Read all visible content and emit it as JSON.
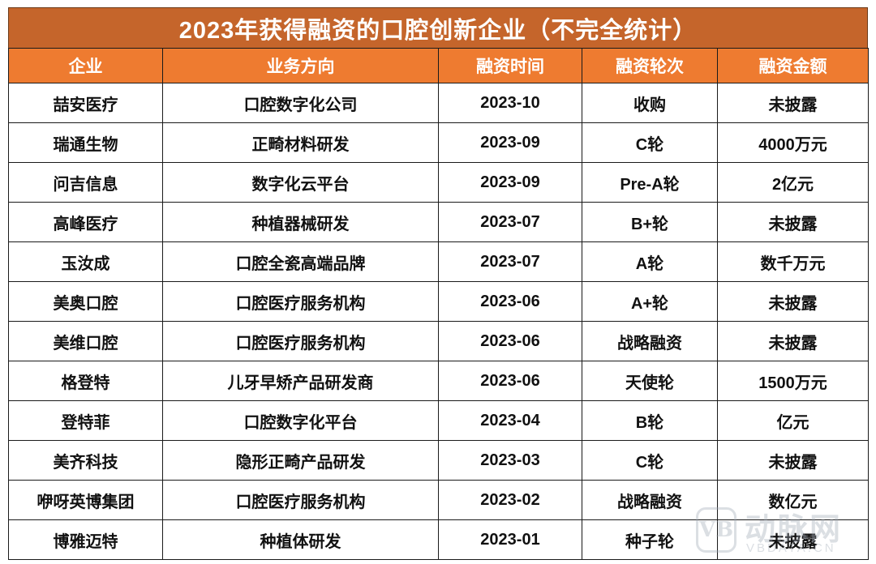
{
  "title": "2023年获得融资的口腔创新企业（不完全统计）",
  "colors": {
    "title_bar": "#C5652B",
    "header_row": "#EE7B30",
    "header_text": "#FFFFFF",
    "cell_text": "#111111"
  },
  "table": {
    "headers": [
      "企业",
      "业务方向",
      "融资时间",
      "融资轮次",
      "融资金额"
    ],
    "rows": [
      [
        "喆安医疗",
        "口腔数字化公司",
        "2023-10",
        "收购",
        "未披露"
      ],
      [
        "瑞通生物",
        "正畸材料研发",
        "2023-09",
        "C轮",
        "4000万元"
      ],
      [
        "问吉信息",
        "数字化云平台",
        "2023-09",
        "Pre-A轮",
        "2亿元"
      ],
      [
        "高峰医疗",
        "种植器械研发",
        "2023-07",
        "B+轮",
        "未披露"
      ],
      [
        "玉汝成",
        "口腔全瓷高端品牌",
        "2023-07",
        "A轮",
        "数千万元"
      ],
      [
        "美奥口腔",
        "口腔医疗服务机构",
        "2023-06",
        "A+轮",
        "未披露"
      ],
      [
        "美维口腔",
        "口腔医疗服务机构",
        "2023-06",
        "战略融资",
        "未披露"
      ],
      [
        "格登特",
        "儿牙早矫产品研发商",
        "2023-06",
        "天使轮",
        "1500万元"
      ],
      [
        "登特菲",
        "口腔数字化平台",
        "2023-04",
        "B轮",
        "亿元"
      ],
      [
        "美齐科技",
        "隐形正畸产品研发",
        "2023-03",
        "C轮",
        "未披露"
      ],
      [
        "咿呀英博集团",
        "口腔医疗服务机构",
        "2023-02",
        "战略融资",
        "数亿元"
      ],
      [
        "博雅迈特",
        "种植体研发",
        "2023-01",
        "种子轮",
        "未披露"
      ]
    ]
  },
  "watermark": {
    "logo": "VB",
    "name": "动脉网",
    "site": "VBDATA.CN"
  }
}
